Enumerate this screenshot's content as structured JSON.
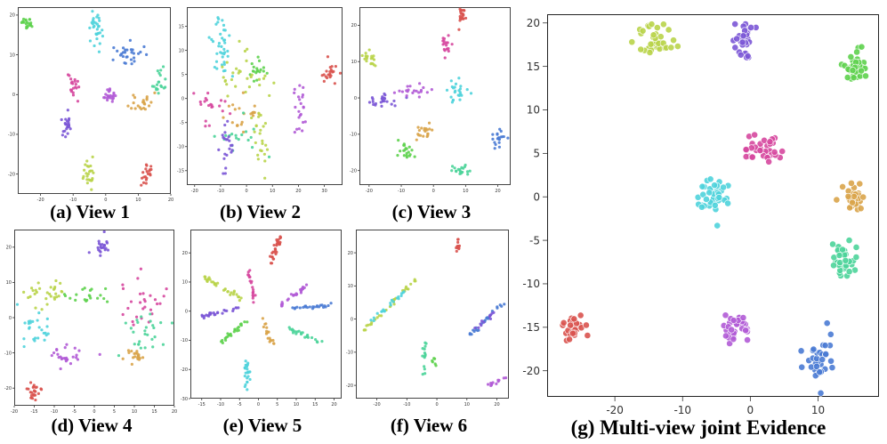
{
  "palette": {
    "red": "#d9534f",
    "orange": "#d9a44a",
    "lime": "#b9d44a",
    "green": "#5ed14e",
    "teal": "#4cd49a",
    "cyan": "#4fd3dc",
    "blue": "#4a7bd4",
    "violet": "#7b57d6",
    "purple": "#b15bd6",
    "pink": "#d6489e"
  },
  "chart_data": [
    {
      "type": "scatter",
      "caption": "(a) View 1",
      "xticks": [
        -20,
        -10,
        0,
        10,
        20
      ],
      "yticks": [
        20,
        10,
        0,
        -10,
        -20
      ],
      "xlim": [
        -27,
        20
      ],
      "ylim": [
        -25,
        22
      ],
      "clusters": [
        {
          "color": "green",
          "cx": -24,
          "cy": 18,
          "sx": 0.8,
          "sy": 0.8,
          "n": 22
        },
        {
          "color": "cyan",
          "cx": -3,
          "cy": 17,
          "sx": 1.0,
          "sy": 2.5,
          "n": 32
        },
        {
          "color": "blue",
          "cx": 6,
          "cy": 10,
          "sx": 2.5,
          "sy": 1.6,
          "n": 28
        },
        {
          "color": "teal",
          "cx": 16,
          "cy": 3,
          "sx": 1.0,
          "sy": 1.5,
          "n": 20
        },
        {
          "color": "pink",
          "cx": -10,
          "cy": 2,
          "sx": 1.0,
          "sy": 1.5,
          "n": 20
        },
        {
          "color": "purple",
          "cx": 1,
          "cy": 0,
          "sx": 1.2,
          "sy": 1.0,
          "n": 22
        },
        {
          "color": "orange",
          "cx": 11,
          "cy": -2,
          "sx": 1.5,
          "sy": 1.0,
          "n": 22
        },
        {
          "color": "violet",
          "cx": -12,
          "cy": -8,
          "sx": 1.2,
          "sy": 1.5,
          "n": 22
        },
        {
          "color": "lime",
          "cx": -5,
          "cy": -20,
          "sx": 1.0,
          "sy": 2.0,
          "n": 24
        },
        {
          "color": "red",
          "cx": 13,
          "cy": -20,
          "sx": 1.2,
          "sy": 1.2,
          "n": 20
        }
      ]
    },
    {
      "type": "scatter",
      "caption": "(b) View 2",
      "xticks": [
        -20,
        -10,
        0,
        10,
        20,
        30
      ],
      "yticks": [
        15,
        10,
        5,
        0,
        -5,
        -10,
        -15
      ],
      "xlim": [
        -23,
        37
      ],
      "ylim": [
        -18,
        19
      ],
      "clusters": [
        {
          "color": "cyan",
          "cx": -10,
          "cy": 11,
          "sx": 2.0,
          "sy": 4.0,
          "n": 40
        },
        {
          "color": "green",
          "cx": 4,
          "cy": 6,
          "sx": 1.5,
          "sy": 1.2,
          "n": 18
        },
        {
          "color": "lime",
          "cx": -2,
          "cy": 3,
          "sx": 6.0,
          "sy": 3.0,
          "n": 30
        },
        {
          "color": "pink",
          "cx": -15,
          "cy": -2,
          "sx": 4.0,
          "sy": 1.8,
          "n": 22
        },
        {
          "color": "purple",
          "cx": 20,
          "cy": -2,
          "sx": 1.2,
          "sy": 2.2,
          "n": 22
        },
        {
          "color": "orange",
          "cx": -1,
          "cy": -4,
          "sx": 5.0,
          "sy": 2.0,
          "n": 22
        },
        {
          "color": "teal",
          "cx": -3,
          "cy": -8,
          "sx": 4.0,
          "sy": 2.0,
          "n": 18
        },
        {
          "color": "lime",
          "cx": 5,
          "cy": -9,
          "sx": 1.5,
          "sy": 3.0,
          "n": 22
        },
        {
          "color": "violet",
          "cx": -8,
          "cy": -11,
          "sx": 1.2,
          "sy": 3.0,
          "n": 22
        },
        {
          "color": "red",
          "cx": 32,
          "cy": 5,
          "sx": 1.5,
          "sy": 1.0,
          "n": 22
        }
      ]
    },
    {
      "type": "scatter",
      "caption": "(c) View 3",
      "xticks": [
        -20,
        -10,
        0,
        10,
        20
      ],
      "yticks": [
        20,
        10,
        0,
        -10,
        -20
      ],
      "xlim": [
        -23,
        24
      ],
      "ylim": [
        -24,
        25
      ],
      "clusters": [
        {
          "color": "red",
          "cx": 9,
          "cy": 23,
          "sx": 0.7,
          "sy": 1.2,
          "n": 20
        },
        {
          "color": "pink",
          "cx": 4,
          "cy": 15,
          "sx": 0.8,
          "sy": 2.0,
          "n": 18
        },
        {
          "color": "lime",
          "cx": -20,
          "cy": 11,
          "sx": 1.2,
          "sy": 1.2,
          "n": 20
        },
        {
          "color": "violet",
          "cx": -16,
          "cy": -1,
          "sx": 2.5,
          "sy": 1.0,
          "n": 24
        },
        {
          "color": "purple",
          "cx": -6,
          "cy": 2,
          "sx": 2.5,
          "sy": 0.8,
          "n": 20
        },
        {
          "color": "cyan",
          "cx": 7,
          "cy": 2,
          "sx": 2.0,
          "sy": 1.5,
          "n": 24
        },
        {
          "color": "orange",
          "cx": -2,
          "cy": -9,
          "sx": 1.5,
          "sy": 1.0,
          "n": 20
        },
        {
          "color": "blue",
          "cx": 20,
          "cy": -11,
          "sx": 1.0,
          "sy": 1.2,
          "n": 20
        },
        {
          "color": "green",
          "cx": -9,
          "cy": -15,
          "sx": 1.2,
          "sy": 1.2,
          "n": 20
        },
        {
          "color": "teal",
          "cx": 9,
          "cy": -20,
          "sx": 1.2,
          "sy": 0.7,
          "n": 20
        }
      ]
    },
    {
      "type": "scatter",
      "caption": "(d) View 4",
      "xticks": [
        -20,
        -15,
        -10,
        -5,
        0,
        5,
        10,
        15,
        20
      ],
      "yticks": [
        20,
        10,
        0,
        -10,
        -20
      ],
      "xlim": [
        -20,
        20
      ],
      "ylim": [
        -25,
        25
      ],
      "clusters": [
        {
          "color": "violet",
          "cx": 2,
          "cy": 20,
          "sx": 1.2,
          "sy": 1.5,
          "n": 22
        },
        {
          "color": "lime",
          "cx": -12,
          "cy": 7,
          "sx": 3.0,
          "sy": 2.0,
          "n": 30
        },
        {
          "color": "green",
          "cx": -2,
          "cy": 6,
          "sx": 2.5,
          "sy": 1.2,
          "n": 20
        },
        {
          "color": "pink",
          "cx": 13,
          "cy": 5,
          "sx": 3.5,
          "sy": 3.0,
          "n": 28
        },
        {
          "color": "cyan",
          "cx": -15,
          "cy": -2,
          "sx": 2.5,
          "sy": 3.0,
          "n": 26
        },
        {
          "color": "teal",
          "cx": 12,
          "cy": -4,
          "sx": 4.0,
          "sy": 4.0,
          "n": 30
        },
        {
          "color": "purple",
          "cx": -7,
          "cy": -11,
          "sx": 2.5,
          "sy": 1.5,
          "n": 26
        },
        {
          "color": "orange",
          "cx": 10,
          "cy": -11,
          "sx": 1.5,
          "sy": 1.2,
          "n": 20
        },
        {
          "color": "red",
          "cx": -15,
          "cy": -21,
          "sx": 1.2,
          "sy": 1.5,
          "n": 24
        }
      ]
    },
    {
      "type": "scatter",
      "caption": "(e) View 5",
      "xticks": [
        -15,
        -10,
        -5,
        0,
        5,
        10,
        15,
        20
      ],
      "yticks": [
        20,
        10,
        0,
        -10,
        -20,
        -30
      ],
      "xlim": [
        -18,
        22
      ],
      "ylim": [
        -30,
        28
      ],
      "rays": [
        {
          "color": "red",
          "x1": 3,
          "y1": 16,
          "x2": 6,
          "y2": 26,
          "n": 30
        },
        {
          "color": "pink",
          "x1": -3,
          "y1": 15,
          "x2": -1,
          "y2": 3,
          "n": 20
        },
        {
          "color": "purple",
          "x1": 6,
          "y1": 2,
          "x2": 13,
          "y2": 9,
          "n": 24
        },
        {
          "color": "lime",
          "x1": -15,
          "y1": 12,
          "x2": -4,
          "y2": 4,
          "n": 32
        },
        {
          "color": "violet",
          "x1": -15,
          "y1": -2,
          "x2": -5,
          "y2": 1,
          "n": 26
        },
        {
          "color": "blue",
          "x1": 9,
          "y1": 1,
          "x2": 19,
          "y2": 2,
          "n": 24
        },
        {
          "color": "green",
          "x1": -3,
          "y1": -3,
          "x2": -10,
          "y2": -11,
          "n": 24
        },
        {
          "color": "teal",
          "x1": 8,
          "y1": -6,
          "x2": 17,
          "y2": -11,
          "n": 24
        },
        {
          "color": "orange",
          "x1": 1,
          "y1": -2,
          "x2": 4,
          "y2": -12,
          "n": 18
        },
        {
          "color": "cyan",
          "x1": -3,
          "y1": -17,
          "x2": -3,
          "y2": -27,
          "n": 24
        }
      ]
    },
    {
      "type": "scatter",
      "caption": "(f) View 6",
      "xticks": [
        -20,
        -10,
        0,
        10,
        20
      ],
      "yticks": [
        20,
        10,
        0,
        -10,
        -20
      ],
      "xlim": [
        -27,
        24
      ],
      "ylim": [
        -24,
        27
      ],
      "rays": [
        {
          "color": "red",
          "x1": 7,
          "y1": 25,
          "x2": 7,
          "y2": 21,
          "n": 14
        },
        {
          "color": "lime",
          "x1": -25,
          "y1": -4,
          "x2": -6,
          "y2": 13,
          "n": 34
        },
        {
          "color": "cyan",
          "x1": -22,
          "y1": -1,
          "x2": -10,
          "y2": 9,
          "n": 20
        },
        {
          "color": "blue",
          "x1": 11,
          "y1": -5,
          "x2": 22,
          "y2": 5,
          "n": 24
        },
        {
          "color": "violet",
          "x1": 13,
          "y1": -3,
          "x2": 19,
          "y2": 2,
          "n": 12
        },
        {
          "color": "teal",
          "x1": -4,
          "y1": -7,
          "x2": -4,
          "y2": -17,
          "n": 16
        },
        {
          "color": "green",
          "x1": -1,
          "y1": -12,
          "x2": -1,
          "y2": -14,
          "n": 6
        },
        {
          "color": "purple",
          "x1": 17,
          "y1": -20,
          "x2": 22,
          "y2": -18,
          "n": 12
        }
      ]
    },
    {
      "type": "scatter",
      "caption": "(g) Multi-view joint Evidence",
      "xticks": [
        -20,
        -10,
        0,
        10
      ],
      "yticks": [
        20,
        15,
        10,
        5,
        0,
        -5,
        -10,
        -15,
        -20
      ],
      "xlim": [
        -30,
        19
      ],
      "ylim": [
        -23,
        21
      ],
      "clusters": [
        {
          "color": "lime",
          "cx": -14,
          "cy": 18,
          "sx": 1.4,
          "sy": 1.0,
          "n": 40
        },
        {
          "color": "violet",
          "cx": -1,
          "cy": 18,
          "sx": 0.8,
          "sy": 1.2,
          "n": 34
        },
        {
          "color": "green",
          "cx": 15.5,
          "cy": 15,
          "sx": 0.8,
          "sy": 1.2,
          "n": 34
        },
        {
          "color": "pink",
          "cx": 2,
          "cy": 5.5,
          "sx": 1.4,
          "sy": 0.8,
          "n": 36
        },
        {
          "color": "cyan",
          "cx": -5.5,
          "cy": 0,
          "sx": 1.3,
          "sy": 1.1,
          "n": 40
        },
        {
          "color": "orange",
          "cx": 15.5,
          "cy": 0,
          "sx": 0.8,
          "sy": 0.9,
          "n": 30
        },
        {
          "color": "teal",
          "cx": 13.5,
          "cy": -7.5,
          "sx": 0.9,
          "sy": 1.3,
          "n": 36
        },
        {
          "color": "purple",
          "cx": -2,
          "cy": -15,
          "sx": 0.9,
          "sy": 0.8,
          "n": 34
        },
        {
          "color": "red",
          "cx": -26,
          "cy": -15,
          "sx": 0.9,
          "sy": 0.7,
          "n": 32
        },
        {
          "color": "blue",
          "cx": 10,
          "cy": -19,
          "sx": 0.9,
          "sy": 1.2,
          "n": 36
        }
      ]
    }
  ]
}
